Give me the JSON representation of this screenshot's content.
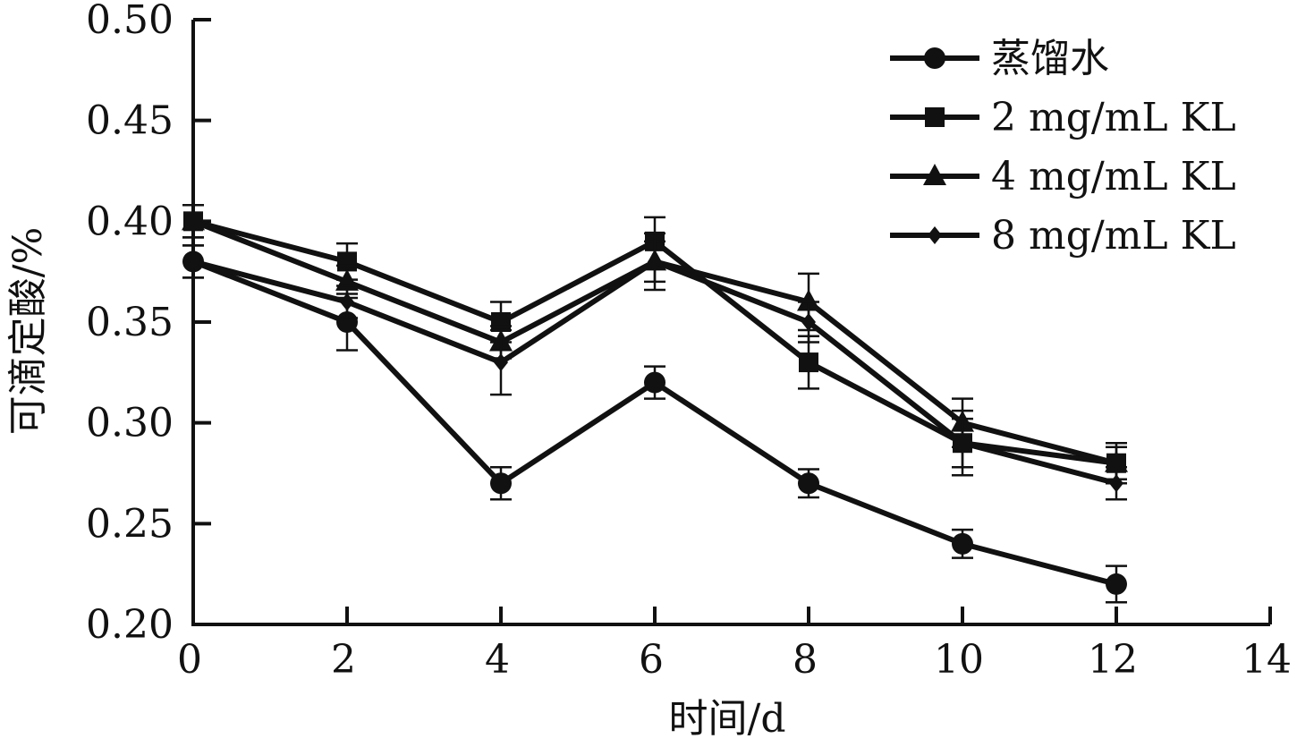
{
  "chart_data": {
    "type": "line",
    "xlabel": "时间/d",
    "ylabel": "可滴定酸/%",
    "xlim": [
      0,
      14
    ],
    "ylim": [
      0.2,
      0.5
    ],
    "x_ticks": [
      "0",
      "2",
      "4",
      "6",
      "8",
      "10",
      "12",
      "14"
    ],
    "y_ticks": [
      "0.20",
      "0.25",
      "0.30",
      "0.35",
      "0.40",
      "0.45",
      "0.50"
    ],
    "x": [
      0,
      2,
      4,
      6,
      8,
      10,
      12
    ],
    "grid": false,
    "legend_position": "top-right",
    "series": [
      {
        "name": "蒸馏水",
        "marker": "circle",
        "values": [
          0.38,
          0.35,
          0.27,
          0.32,
          0.27,
          0.24,
          0.22
        ],
        "errors": [
          0.008,
          0.014,
          0.008,
          0.008,
          0.007,
          0.007,
          0.009
        ]
      },
      {
        "name": "2 mg/mL KL",
        "marker": "square",
        "values": [
          0.4,
          0.38,
          0.35,
          0.39,
          0.33,
          0.29,
          0.28
        ],
        "errors": [
          0.008,
          0.009,
          0.01,
          0.012,
          0.013,
          0.016,
          0.01
        ]
      },
      {
        "name": "4 mg/mL KL",
        "marker": "triangle",
        "values": [
          0.4,
          0.37,
          0.34,
          0.38,
          0.36,
          0.3,
          0.28
        ],
        "errors": [
          0.008,
          0.008,
          0.008,
          0.01,
          0.014,
          0.012,
          0.008
        ]
      },
      {
        "name": "8 mg/mL KL",
        "marker": "diamond",
        "values": [
          0.38,
          0.36,
          0.33,
          0.38,
          0.35,
          0.29,
          0.27
        ],
        "errors": [
          0.008,
          0.008,
          0.016,
          0.014,
          0.01,
          0.012,
          0.008
        ]
      }
    ],
    "colors": {
      "line": "#111111",
      "background": "#ffffff"
    }
  }
}
